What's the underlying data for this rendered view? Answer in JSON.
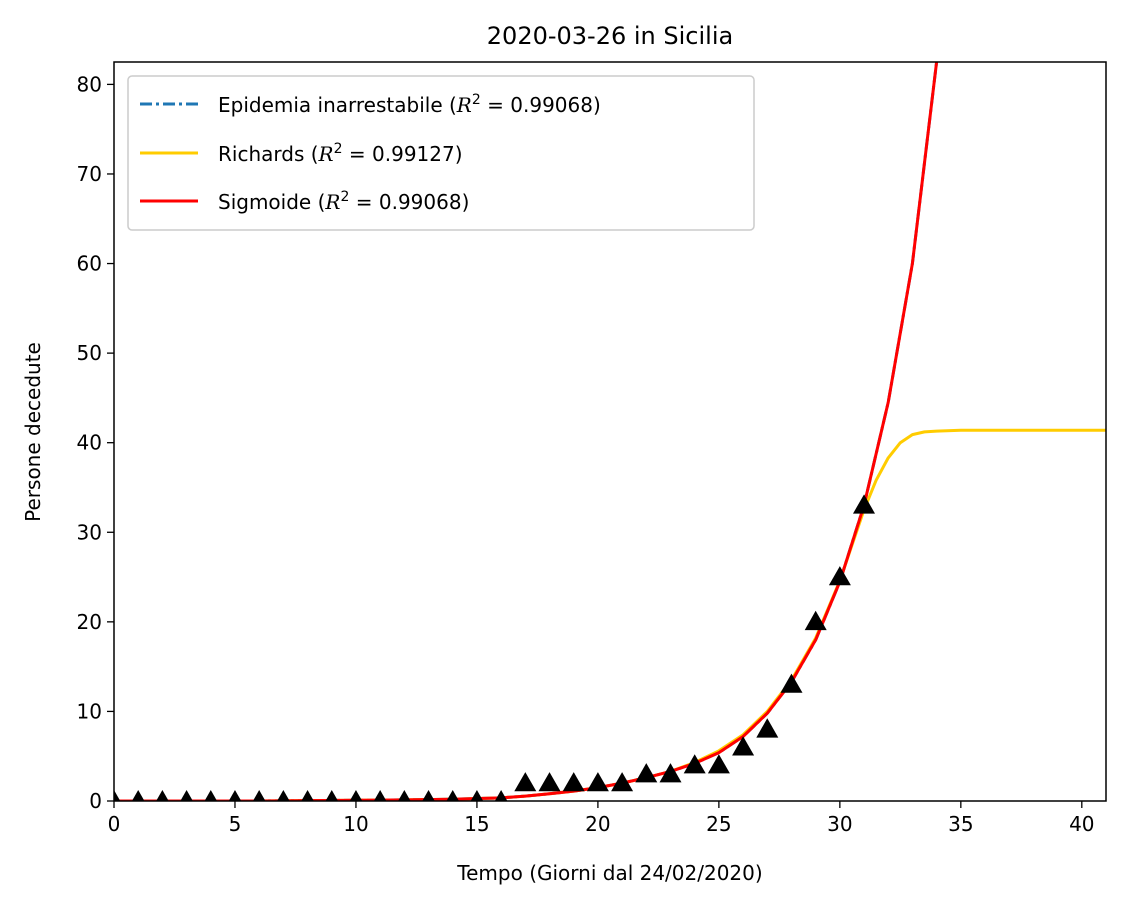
{
  "chart_data": {
    "type": "line",
    "title": "2020-03-26 in Sicilia",
    "xlabel": "Tempo (Giorni dal 24/02/2020)",
    "ylabel": "Persone decedute",
    "xlim": [
      0,
      41
    ],
    "ylim": [
      0,
      82.5
    ],
    "xticks": [
      0,
      5,
      10,
      15,
      20,
      25,
      30,
      35,
      40
    ],
    "yticks": [
      0,
      10,
      20,
      30,
      40,
      50,
      60,
      70,
      80
    ],
    "grid": false,
    "legend_position": "top-left",
    "series": [
      {
        "name": "Epidemia inarrestabile",
        "r2": "0.99068",
        "style": "dashdot",
        "color": "#1f77b4",
        "x": [
          0,
          2,
          4,
          6,
          8,
          10,
          12,
          14,
          16,
          17,
          18,
          19,
          20,
          21,
          22,
          23,
          24,
          25,
          26,
          27,
          28,
          29,
          30,
          31,
          32,
          33,
          34
        ],
        "y": [
          0,
          0,
          0,
          0,
          0.05,
          0.08,
          0.12,
          0.2,
          0.35,
          0.55,
          0.8,
          1.1,
          1.5,
          2.0,
          2.6,
          3.3,
          4.2,
          5.4,
          7.2,
          9.8,
          13.3,
          18.0,
          24.5,
          33.0,
          44.5,
          60.0,
          82.5
        ]
      },
      {
        "name": "Richards",
        "r2": "0.99127",
        "style": "solid",
        "color": "#ffcc00",
        "x": [
          0,
          2,
          4,
          6,
          8,
          10,
          12,
          14,
          16,
          17,
          18,
          19,
          20,
          21,
          22,
          23,
          24,
          25,
          26,
          27,
          28,
          29,
          30,
          31,
          31.5,
          32,
          32.5,
          33,
          33.5,
          34,
          35,
          36,
          38,
          41
        ],
        "y": [
          0,
          0,
          0,
          0,
          0.05,
          0.08,
          0.12,
          0.2,
          0.35,
          0.55,
          0.8,
          1.1,
          1.5,
          2.0,
          2.6,
          3.3,
          4.3,
          5.6,
          7.4,
          10.0,
          13.5,
          18.2,
          24.6,
          32.5,
          35.8,
          38.3,
          40.0,
          40.9,
          41.2,
          41.3,
          41.4,
          41.4,
          41.4,
          41.4
        ]
      },
      {
        "name": "Sigmoide",
        "r2": "0.99068",
        "style": "solid",
        "color": "#ff0000",
        "x": [
          0,
          2,
          4,
          6,
          8,
          10,
          12,
          14,
          16,
          17,
          18,
          19,
          20,
          21,
          22,
          23,
          24,
          25,
          26,
          27,
          28,
          29,
          30,
          31,
          32,
          33,
          34
        ],
        "y": [
          0,
          0,
          0,
          0,
          0.05,
          0.08,
          0.12,
          0.2,
          0.35,
          0.55,
          0.8,
          1.1,
          1.5,
          2.0,
          2.6,
          3.3,
          4.2,
          5.4,
          7.2,
          9.8,
          13.3,
          18.0,
          24.5,
          33.0,
          44.5,
          60.0,
          82.5
        ]
      }
    ],
    "observed": {
      "marker": "triangle-up",
      "color": "#000000",
      "x": [
        0,
        1,
        2,
        3,
        4,
        5,
        6,
        7,
        8,
        9,
        10,
        11,
        12,
        13,
        14,
        15,
        16,
        17,
        18,
        19,
        20,
        21,
        22,
        23,
        24,
        25,
        26,
        27,
        28,
        29,
        30,
        31
      ],
      "y": [
        0,
        0,
        0,
        0,
        0,
        0,
        0,
        0,
        0,
        0,
        0,
        0,
        0,
        0,
        0,
        0,
        0,
        2,
        2,
        2,
        2,
        2,
        3,
        3,
        4,
        4,
        6,
        8,
        13,
        20,
        25,
        33
      ]
    }
  }
}
